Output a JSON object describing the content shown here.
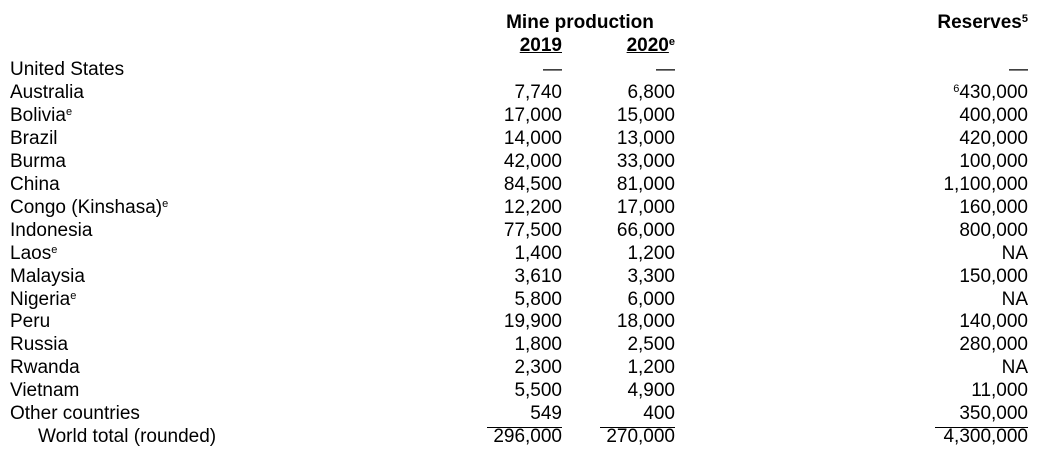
{
  "header": {
    "group": "Mine production",
    "years": [
      {
        "text": "2019"
      },
      {
        "text": "2020",
        "note": "e"
      }
    ],
    "reserves": {
      "text": "Reserves",
      "note": "5"
    }
  },
  "table": {
    "rows": [
      {
        "country": "United States",
        "y2019": "—",
        "y2020": "—",
        "reserves": "—"
      },
      {
        "country": "Australia",
        "y2019": "7,740",
        "y2020": "6,800",
        "reserves": "430,000",
        "reserves_note": "6"
      },
      {
        "country": "Bolivia",
        "country_note": "e",
        "y2019": "17,000",
        "y2020": "15,000",
        "reserves": "400,000"
      },
      {
        "country": "Brazil",
        "y2019": "14,000",
        "y2020": "13,000",
        "reserves": "420,000"
      },
      {
        "country": "Burma",
        "y2019": "42,000",
        "y2020": "33,000",
        "reserves": "100,000"
      },
      {
        "country": "China",
        "y2019": "84,500",
        "y2020": "81,000",
        "reserves": "1,100,000"
      },
      {
        "country": "Congo (Kinshasa)",
        "country_note": "e",
        "y2019": "12,200",
        "y2020": "17,000",
        "reserves": "160,000"
      },
      {
        "country": "Indonesia",
        "y2019": "77,500",
        "y2020": "66,000",
        "reserves": "800,000"
      },
      {
        "country": "Laos",
        "country_note": "e",
        "y2019": "1,400",
        "y2020": "1,200",
        "reserves": "NA"
      },
      {
        "country": "Malaysia",
        "y2019": "3,610",
        "y2020": "3,300",
        "reserves": "150,000"
      },
      {
        "country": "Nigeria",
        "country_note": "e",
        "y2019": "5,800",
        "y2020": "6,000",
        "reserves": "NA"
      },
      {
        "country": "Peru",
        "y2019": "19,900",
        "y2020": "18,000",
        "reserves": "140,000"
      },
      {
        "country": "Russia",
        "y2019": "1,800",
        "y2020": "2,500",
        "reserves": "280,000"
      },
      {
        "country": "Rwanda",
        "y2019": "2,300",
        "y2020": "1,200",
        "reserves": "NA"
      },
      {
        "country": "Vietnam",
        "y2019": "5,500",
        "y2020": "4,900",
        "reserves": "11,000"
      },
      {
        "country": "Other countries",
        "y2019": "549",
        "y2020": "400",
        "reserves": "350,000"
      },
      {
        "country": "World total (rounded)",
        "y2019": "296,000",
        "y2020": "270,000",
        "reserves": "4,300,000"
      }
    ]
  }
}
